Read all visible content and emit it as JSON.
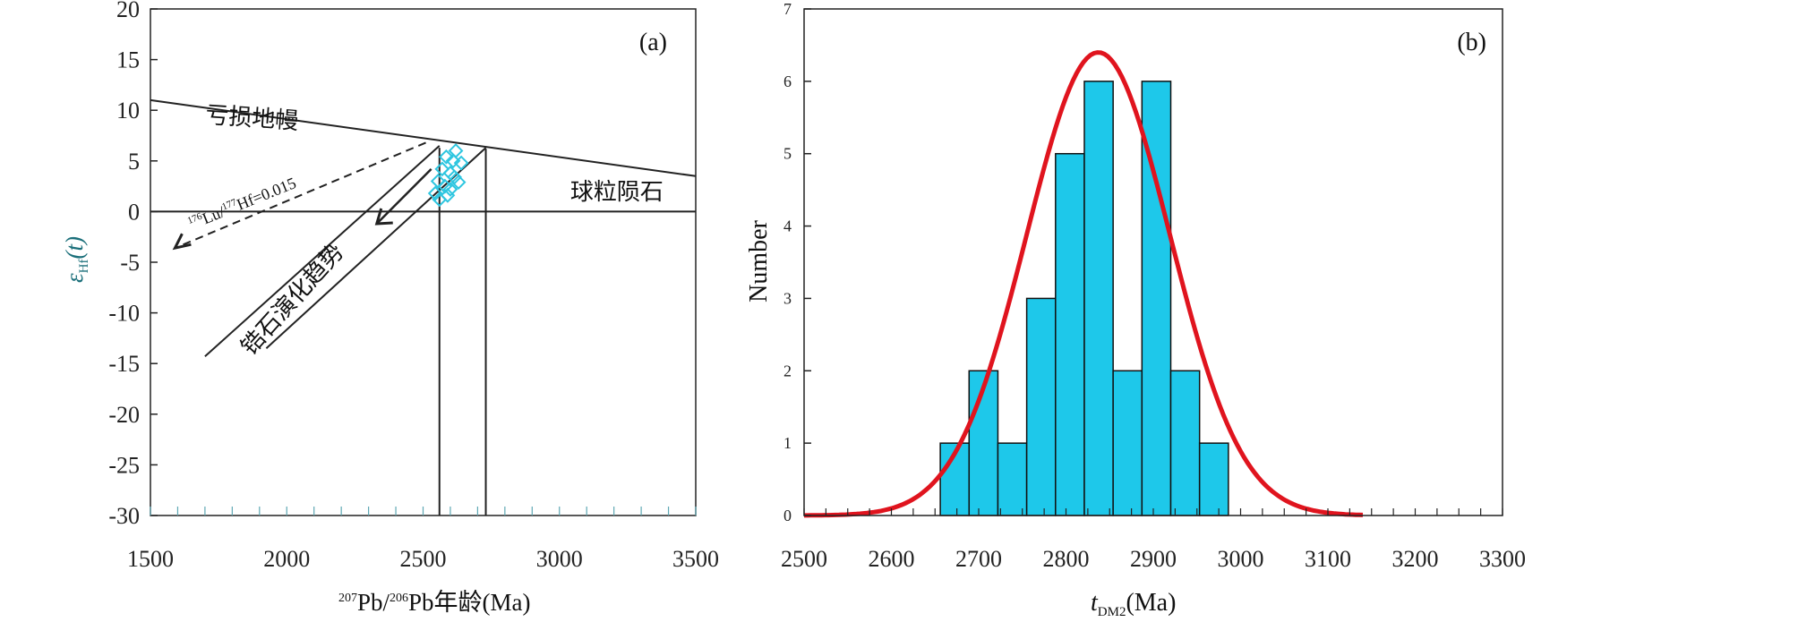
{
  "chart_data": [
    {
      "panel": "a",
      "type": "scatter",
      "panel_label": "(a)",
      "xlabel_sup1": "207",
      "xlabel_mid1": "Pb/",
      "xlabel_sup2": "206",
      "xlabel_rest": "Pb年龄(Ma)",
      "ylabel_main": "ε",
      "ylabel_sub": "Hf",
      "ylabel_tail": "(t)",
      "xlim": [
        1500,
        3500
      ],
      "ylim": [
        -30,
        20
      ],
      "xticks": [
        "1500",
        "2000",
        "2500",
        "3000",
        "3500"
      ],
      "yticks": [
        "20",
        "15",
        "10",
        "5",
        "0",
        "-5",
        "-10",
        "-15",
        "-20",
        "-25",
        "-30"
      ],
      "annotations": {
        "depleted_mantle": "亏损地幔",
        "chondrite": "球粒陨石",
        "zircon_trend": "锆石演化趋势",
        "lu_hf_sup1": "176",
        "lu_hf_mid": "Lu/",
        "lu_hf_sup2": "177",
        "lu_hf_tail": "Hf=0.015"
      },
      "depleted_mantle_line": [
        [
          1500,
          11
        ],
        [
          3500,
          3.5
        ]
      ],
      "chondrite_line": [
        [
          1500,
          0
        ],
        [
          3500,
          0
        ]
      ],
      "points": [
        [
          2560,
          1.2
        ],
        [
          2580,
          2.5
        ],
        [
          2600,
          3.8
        ],
        [
          2570,
          4.2
        ],
        [
          2590,
          1.6
        ],
        [
          2610,
          5.0
        ],
        [
          2555,
          3.0
        ],
        [
          2620,
          6.0
        ],
        [
          2640,
          4.8
        ],
        [
          2600,
          2.2
        ],
        [
          2585,
          5.4
        ],
        [
          2630,
          2.9
        ],
        [
          2545,
          1.8
        ],
        [
          2615,
          3.4
        ]
      ],
      "point_color": "#2ec6e0"
    },
    {
      "panel": "b",
      "type": "bar",
      "panel_label": "(b)",
      "xlabel_main": "t",
      "xlabel_sub": "DM2",
      "xlabel_tail": "(Ma)",
      "ylabel": "Number",
      "xlim": [
        2500,
        3300
      ],
      "ylim": [
        0,
        7
      ],
      "xticks": [
        "2500",
        "2600",
        "2700",
        "2800",
        "2900",
        "3000",
        "3100",
        "3200",
        "3300"
      ],
      "yticks": [
        "0",
        "1",
        "2",
        "3",
        "4",
        "5",
        "6",
        "7"
      ],
      "bin_width": 33,
      "bins": [
        {
          "start": 2656,
          "value": 1
        },
        {
          "start": 2689,
          "value": 2
        },
        {
          "start": 2722,
          "value": 1
        },
        {
          "start": 2755,
          "value": 3
        },
        {
          "start": 2788,
          "value": 5
        },
        {
          "start": 2821,
          "value": 6
        },
        {
          "start": 2854,
          "value": 2
        },
        {
          "start": 2887,
          "value": 6
        },
        {
          "start": 2920,
          "value": 2
        },
        {
          "start": 2953,
          "value": 1
        }
      ],
      "bar_color": "#1ec8ea",
      "fit_curve": {
        "mean": 2837,
        "sd": 82,
        "peak": 6.4,
        "range": [
          2500,
          3140
        ],
        "color": "#e0141e"
      }
    }
  ]
}
